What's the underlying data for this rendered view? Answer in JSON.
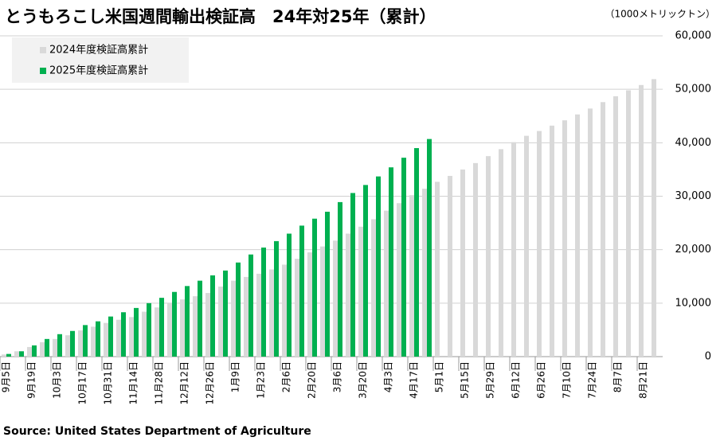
{
  "chart_data": {
    "type": "bar",
    "title": "とうもろこし米国週間輸出検証高　24年対25年（累計）",
    "unit_label": "（1000メトリックトン）",
    "source": "Source: United States Department of Agriculture",
    "categories": [
      "9月5日",
      null,
      "9月19日",
      null,
      "10月3日",
      null,
      "10月17日",
      null,
      "10月31日",
      null,
      "11月14日",
      null,
      "11月28日",
      null,
      "12月12日",
      null,
      "12月26日",
      null,
      "1月9日",
      null,
      "1月23日",
      null,
      "2月6日",
      null,
      "2月20日",
      null,
      "3月6日",
      null,
      "3月20日",
      null,
      "4月3日",
      null,
      "4月17日",
      null,
      "5月1日",
      null,
      "5月15日",
      null,
      "5月29日",
      null,
      "6月12日",
      null,
      "6月26日",
      null,
      "7月10日",
      null,
      "7月24日",
      null,
      "8月7日",
      null,
      "8月21日",
      null
    ],
    "series": [
      {
        "name": "2024年度検証高累計",
        "color": "#d9d9d9",
        "values": [
          400,
          1000,
          1800,
          2700,
          3300,
          4000,
          4900,
          5600,
          6300,
          6900,
          7400,
          8400,
          9200,
          10000,
          10700,
          11300,
          11900,
          13100,
          14200,
          14900,
          15500,
          16300,
          17200,
          18300,
          19500,
          20600,
          21700,
          23000,
          24300,
          25700,
          27300,
          28700,
          30200,
          31400,
          32700,
          33800,
          35000,
          36200,
          37500,
          38800,
          40100,
          41300,
          42200,
          43200,
          44200,
          45300,
          46400,
          47600,
          48700,
          49800,
          50800,
          51900
        ]
      },
      {
        "name": "2025年度検証高累計",
        "color": "#00b050",
        "values": [
          500,
          1000,
          2100,
          3300,
          4200,
          4800,
          5900,
          6600,
          7500,
          8300,
          9100,
          10000,
          11000,
          12100,
          13200,
          14200,
          15200,
          16100,
          17600,
          19100,
          20400,
          21600,
          23000,
          24500,
          25800,
          27100,
          28900,
          30600,
          32100,
          33700,
          35400,
          37200,
          39000,
          40700,
          null,
          null,
          null,
          null,
          null,
          null,
          null,
          null,
          null,
          null,
          null,
          null,
          null,
          null,
          null,
          null,
          null,
          null
        ]
      }
    ],
    "ylim": [
      0,
      60000
    ],
    "yticks": [
      {
        "value": 0,
        "label": "0"
      },
      {
        "value": 10000,
        "label": "10,000"
      },
      {
        "value": 20000,
        "label": "20,000"
      },
      {
        "value": 30000,
        "label": "30,000"
      },
      {
        "value": 40000,
        "label": "40,000"
      },
      {
        "value": 50000,
        "label": "50,000"
      },
      {
        "value": 60000,
        "label": "60,000"
      }
    ],
    "grid": true,
    "legend": "upper left"
  }
}
